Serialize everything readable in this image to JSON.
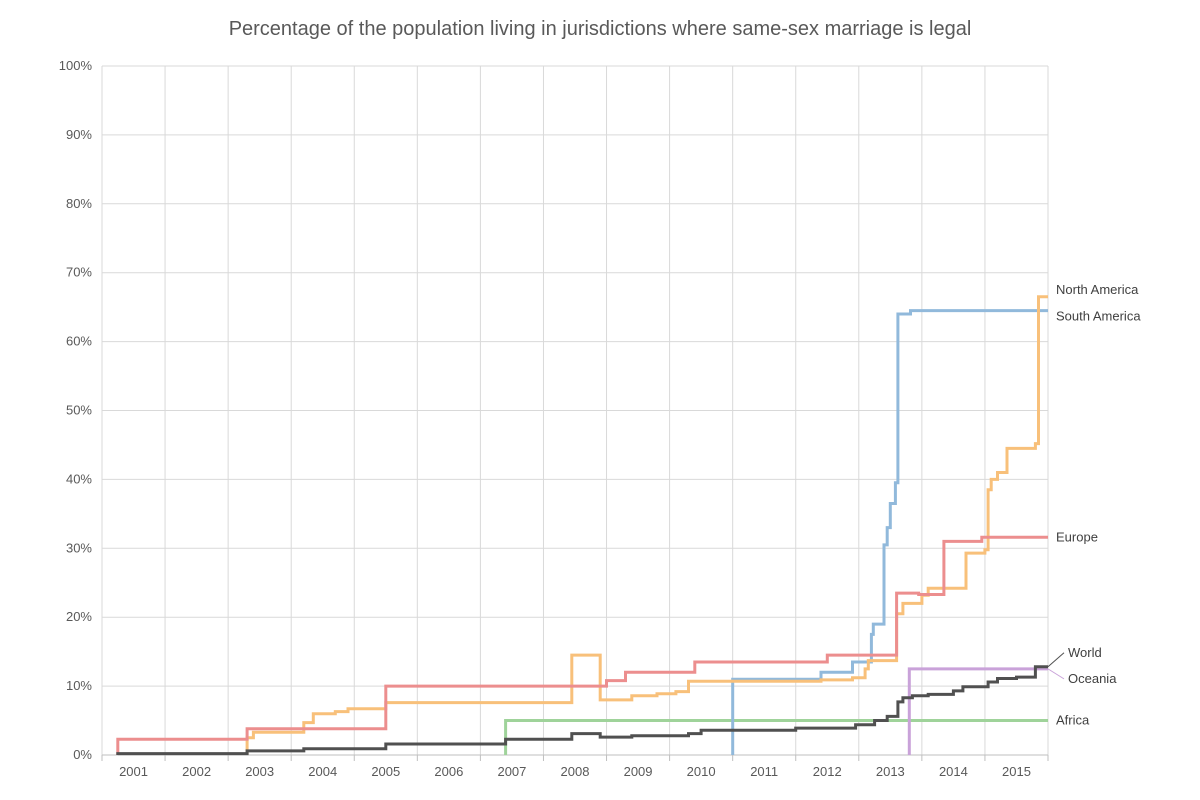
{
  "chart_data": {
    "type": "line",
    "title": "Percentage of the population living in jurisdictions where same-sex marriage is legal",
    "xlabel": "",
    "ylabel": "",
    "xlim": [
      2000.5,
      2015.5
    ],
    "ylim": [
      0,
      100
    ],
    "x_ticks": [
      "2001",
      "2002",
      "2003",
      "2004",
      "2005",
      "2006",
      "2007",
      "2008",
      "2009",
      "2010",
      "2011",
      "2012",
      "2013",
      "2014",
      "2015"
    ],
    "y_ticks": [
      "0%",
      "10%",
      "20%",
      "30%",
      "40%",
      "50%",
      "60%",
      "70%",
      "80%",
      "90%",
      "100%"
    ],
    "grid": true,
    "step": true,
    "series": [
      {
        "name": "Africa",
        "color": "#9fd39a",
        "points": [
          [
            2006.9,
            0
          ],
          [
            2006.9,
            5.0
          ],
          [
            2015.5,
            5.0
          ]
        ]
      },
      {
        "name": "Oceania",
        "color": "#c9a2d9",
        "points": [
          [
            2013.3,
            0
          ],
          [
            2013.3,
            12.5
          ],
          [
            2015.5,
            12.5
          ]
        ]
      },
      {
        "name": "South America",
        "color": "#91b9db",
        "points": [
          [
            2010.5,
            0
          ],
          [
            2010.5,
            11.0
          ],
          [
            2011.9,
            11.0
          ],
          [
            2011.9,
            12.0
          ],
          [
            2012.4,
            12.0
          ],
          [
            2012.4,
            13.5
          ],
          [
            2012.7,
            13.5
          ],
          [
            2012.7,
            17.5
          ],
          [
            2012.73,
            17.5
          ],
          [
            2012.73,
            19.0
          ],
          [
            2012.9,
            19.0
          ],
          [
            2012.9,
            30.5
          ],
          [
            2012.95,
            30.5
          ],
          [
            2012.95,
            33.0
          ],
          [
            2013.0,
            33.0
          ],
          [
            2013.0,
            36.5
          ],
          [
            2013.08,
            36.5
          ],
          [
            2013.08,
            39.5
          ],
          [
            2013.12,
            39.5
          ],
          [
            2013.12,
            64.0
          ],
          [
            2013.32,
            64.0
          ],
          [
            2013.32,
            64.5
          ],
          [
            2015.5,
            64.5
          ]
        ]
      },
      {
        "name": "North America",
        "color": "#f8c07a",
        "points": [
          [
            2002.8,
            0
          ],
          [
            2002.8,
            2.5
          ],
          [
            2002.9,
            2.5
          ],
          [
            2002.9,
            3.3
          ],
          [
            2003.7,
            3.3
          ],
          [
            2003.7,
            4.7
          ],
          [
            2003.85,
            4.7
          ],
          [
            2003.85,
            6.0
          ],
          [
            2004.2,
            6.0
          ],
          [
            2004.2,
            6.3
          ],
          [
            2004.4,
            6.3
          ],
          [
            2004.4,
            6.7
          ],
          [
            2005.0,
            6.7
          ],
          [
            2005.0,
            7.6
          ],
          [
            2007.95,
            7.6
          ],
          [
            2007.95,
            14.5
          ],
          [
            2008.4,
            14.5
          ],
          [
            2008.4,
            8.0
          ],
          [
            2008.9,
            8.0
          ],
          [
            2008.9,
            8.6
          ],
          [
            2009.3,
            8.6
          ],
          [
            2009.3,
            8.9
          ],
          [
            2009.6,
            8.9
          ],
          [
            2009.6,
            9.2
          ],
          [
            2009.8,
            9.2
          ],
          [
            2009.8,
            10.7
          ],
          [
            2011.9,
            10.7
          ],
          [
            2011.9,
            10.9
          ],
          [
            2012.4,
            10.9
          ],
          [
            2012.4,
            11.2
          ],
          [
            2012.6,
            11.2
          ],
          [
            2012.6,
            12.5
          ],
          [
            2012.65,
            12.5
          ],
          [
            2012.65,
            13.7
          ],
          [
            2013.1,
            13.7
          ],
          [
            2013.1,
            20.5
          ],
          [
            2013.2,
            20.5
          ],
          [
            2013.2,
            22.0
          ],
          [
            2013.5,
            22.0
          ],
          [
            2013.5,
            23.2
          ],
          [
            2013.6,
            23.2
          ],
          [
            2013.6,
            24.2
          ],
          [
            2014.2,
            24.2
          ],
          [
            2014.2,
            29.3
          ],
          [
            2014.5,
            29.3
          ],
          [
            2014.5,
            29.8
          ],
          [
            2014.55,
            29.8
          ],
          [
            2014.55,
            38.5
          ],
          [
            2014.6,
            38.5
          ],
          [
            2014.6,
            40.0
          ],
          [
            2014.7,
            40.0
          ],
          [
            2014.7,
            41.0
          ],
          [
            2014.85,
            41.0
          ],
          [
            2014.85,
            44.5
          ],
          [
            2015.3,
            44.5
          ],
          [
            2015.3,
            45.2
          ],
          [
            2015.35,
            45.2
          ],
          [
            2015.35,
            66.5
          ],
          [
            2015.5,
            66.5
          ]
        ]
      },
      {
        "name": "Europe",
        "color": "#ec8e8e",
        "points": [
          [
            2000.75,
            0
          ],
          [
            2000.75,
            2.3
          ],
          [
            2002.8,
            2.3
          ],
          [
            2002.8,
            3.8
          ],
          [
            2005.0,
            3.8
          ],
          [
            2005.0,
            10.0
          ],
          [
            2008.5,
            10.0
          ],
          [
            2008.5,
            10.8
          ],
          [
            2008.8,
            10.8
          ],
          [
            2008.8,
            12.0
          ],
          [
            2009.9,
            12.0
          ],
          [
            2009.9,
            13.5
          ],
          [
            2012.0,
            13.5
          ],
          [
            2012.0,
            14.5
          ],
          [
            2013.1,
            14.5
          ],
          [
            2013.1,
            23.5
          ],
          [
            2013.45,
            23.5
          ],
          [
            2013.45,
            23.3
          ],
          [
            2013.85,
            23.3
          ],
          [
            2013.85,
            31.0
          ],
          [
            2014.45,
            31.0
          ],
          [
            2014.45,
            31.6
          ],
          [
            2015.5,
            31.6
          ]
        ]
      },
      {
        "name": "World",
        "color": "#505050",
        "points": [
          [
            2000.75,
            0
          ],
          [
            2000.75,
            0.2
          ],
          [
            2002.8,
            0.2
          ],
          [
            2002.8,
            0.6
          ],
          [
            2003.7,
            0.6
          ],
          [
            2003.7,
            0.9
          ],
          [
            2005.0,
            0.9
          ],
          [
            2005.0,
            1.6
          ],
          [
            2006.9,
            1.6
          ],
          [
            2006.9,
            2.3
          ],
          [
            2007.95,
            2.3
          ],
          [
            2007.95,
            3.1
          ],
          [
            2008.4,
            3.1
          ],
          [
            2008.4,
            2.6
          ],
          [
            2008.9,
            2.6
          ],
          [
            2008.9,
            2.8
          ],
          [
            2009.8,
            2.8
          ],
          [
            2009.8,
            3.1
          ],
          [
            2010.0,
            3.1
          ],
          [
            2010.0,
            3.6
          ],
          [
            2011.5,
            3.6
          ],
          [
            2011.5,
            3.9
          ],
          [
            2012.45,
            3.9
          ],
          [
            2012.45,
            4.4
          ],
          [
            2012.75,
            4.4
          ],
          [
            2012.75,
            5.0
          ],
          [
            2012.95,
            5.0
          ],
          [
            2012.95,
            5.6
          ],
          [
            2013.12,
            5.6
          ],
          [
            2013.12,
            7.7
          ],
          [
            2013.2,
            7.7
          ],
          [
            2013.2,
            8.3
          ],
          [
            2013.35,
            8.3
          ],
          [
            2013.35,
            8.6
          ],
          [
            2013.6,
            8.6
          ],
          [
            2013.6,
            8.8
          ],
          [
            2014.0,
            8.8
          ],
          [
            2014.0,
            9.3
          ],
          [
            2014.15,
            9.3
          ],
          [
            2014.15,
            9.9
          ],
          [
            2014.55,
            9.9
          ],
          [
            2014.55,
            10.6
          ],
          [
            2014.7,
            10.6
          ],
          [
            2014.7,
            11.1
          ],
          [
            2015.0,
            11.1
          ],
          [
            2015.0,
            11.3
          ],
          [
            2015.3,
            11.3
          ],
          [
            2015.3,
            12.8
          ],
          [
            2015.5,
            12.8
          ]
        ]
      }
    ]
  }
}
